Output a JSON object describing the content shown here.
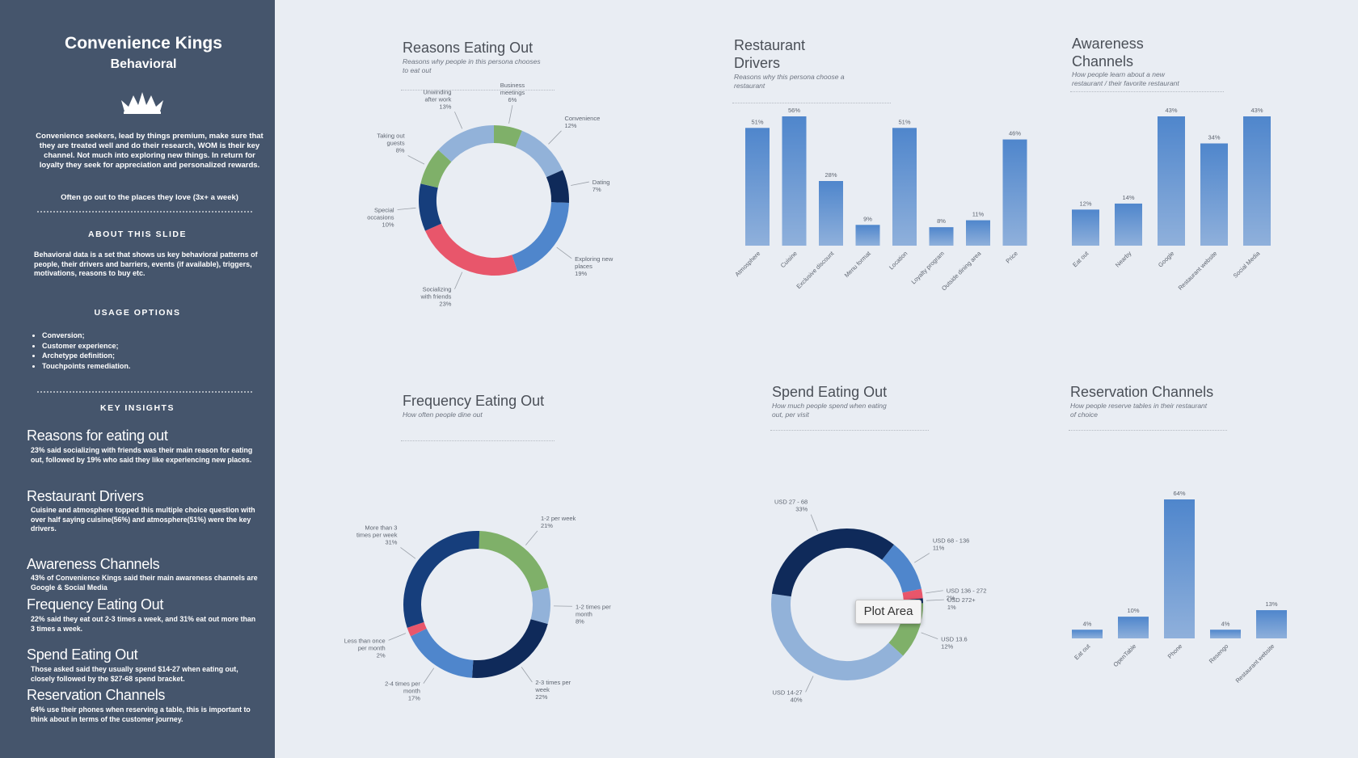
{
  "sidebar": {
    "title": "Convenience Kings",
    "subtitle": "Behavioral",
    "intro": "Convenience seekers, lead by things premium, make sure that they are treated well and do their research, WOM is their key channel. Not much into exploring new things. In return for loyalty they seek for appreciation and personalized rewards.",
    "intro_note": "Often go out to the places they love (3x+ a week)",
    "about_heading": "ABOUT THIS SLIDE",
    "about_text": "Behavioral data is a set that shows us key behavioral patterns of people, their drivers and barriers, events (if available), triggers, motivations, reasons to buy etc.",
    "usage_heading": "USAGE OPTIONS",
    "usage_items": [
      "Conversion;",
      "Customer experience;",
      "Archetype definition;",
      "Touchpoints remediation."
    ],
    "insights_heading": "KEY INSIGHTS",
    "insights": [
      {
        "title": "Reasons for eating out",
        "text": "23% said socializing with friends was their main reason for eating out, followed by 19% who said they like experiencing new places."
      },
      {
        "title": "Restaurant Drivers",
        "text": "Cuisine and atmosphere topped this multiple choice question with over half saying cuisine(56%) and atmosphere(51%) were the key drivers."
      },
      {
        "title": "Awareness Channels",
        "text": "43% of Convenience Kings said their main awareness channels are Google & Social Media"
      },
      {
        "title": "Frequency Eating Out",
        "text": "22% said they eat out 2-3 times a week, and 31% eat out more than 3 times a week."
      },
      {
        "title": "Spend Eating Out",
        "text": "Those asked said they usually spend $14-27 when eating out, closely followed by the $27-68 spend bracket."
      },
      {
        "title": "Reservation Channels",
        "text": "64% use their phones when reserving a table, this is important to think about in terms of the customer journey."
      }
    ]
  },
  "panels": {
    "reasons": {
      "title": "Reasons Eating Out",
      "subtitle": "Reasons why people in this persona chooses to eat out"
    },
    "drivers": {
      "title": "Restaurant Drivers",
      "subtitle": "Reasons why this persona choose a restaurant"
    },
    "awareness": {
      "title": "Awareness Channels",
      "subtitle": "How people learn about a new restaurant / their favorite restaurant"
    },
    "frequency": {
      "title": "Frequency Eating Out",
      "subtitle": "How often people dine out"
    },
    "spend": {
      "title": "Spend Eating Out",
      "subtitle": "How much people spend when eating out, per visit"
    },
    "reservation": {
      "title": "Reservation Channels",
      "subtitle": "How people reserve tables in their restaurant of choice"
    }
  },
  "tooltip": "Plot Area",
  "colors": {
    "sidebar": "#45556c",
    "background": "#e9edf3",
    "light_blue": "#92b2d9",
    "mid_blue": "#4f86cc",
    "dark_navy": "#0f2a5a",
    "green": "#7fb069",
    "red": "#e8566b"
  },
  "chart_data": [
    {
      "id": "reasons",
      "type": "pie",
      "title": "Reasons Eating Out",
      "slices": [
        {
          "label": "Business meetings",
          "value": 6,
          "color": "#7fb069"
        },
        {
          "label": "Convenience",
          "value": 12,
          "color": "#92b2d9"
        },
        {
          "label": "Dating",
          "value": 7,
          "color": "#0f2a5a"
        },
        {
          "label": "Exploring new places",
          "value": 19,
          "color": "#4f86cc"
        },
        {
          "label": "Socializing with friends",
          "value": 23,
          "color": "#e8566b"
        },
        {
          "label": "Special occasions",
          "value": 10,
          "color": "#163e7c"
        },
        {
          "label": "Taking out guests",
          "value": 8,
          "color": "#7fb069"
        },
        {
          "label": "Unwinding after work",
          "value": 13,
          "color": "#92b2d9"
        }
      ]
    },
    {
      "id": "drivers",
      "type": "bar",
      "title": "Restaurant Drivers",
      "categories": [
        "Atmosphere",
        "Cuisine",
        "Exclusive discount",
        "Menu format",
        "Location",
        "Loyalty program",
        "Outside dining area",
        "Price"
      ],
      "values": [
        51,
        56,
        28,
        9,
        51,
        8,
        11,
        46
      ]
    },
    {
      "id": "awareness",
      "type": "bar",
      "title": "Awareness Channels",
      "categories": [
        "Eat out",
        "Nearby",
        "Google",
        "Restaurant website",
        "Social Media"
      ],
      "values": [
        12,
        14,
        43,
        34,
        43
      ]
    },
    {
      "id": "frequency",
      "type": "pie",
      "title": "Frequency Eating Out",
      "slices": [
        {
          "label": "1-2 per week",
          "value": 21,
          "color": "#7fb069"
        },
        {
          "label": "1-2 times per month",
          "value": 8,
          "color": "#92b2d9"
        },
        {
          "label": "2-3 times per week",
          "value": 22,
          "color": "#0f2a5a"
        },
        {
          "label": "2-4 times per month",
          "value": 17,
          "color": "#4f86cc"
        },
        {
          "label": "Less than once per month",
          "value": 2,
          "color": "#e8566b"
        },
        {
          "label": "More than 3 times per week",
          "value": 31,
          "color": "#163e7c"
        }
      ]
    },
    {
      "id": "spend",
      "type": "pie",
      "title": "Spend Eating Out",
      "slices": [
        {
          "label": "USD 13.6",
          "value": 12,
          "color": "#7fb069"
        },
        {
          "label": "USD 14-27",
          "value": 40,
          "color": "#92b2d9"
        },
        {
          "label": "USD 27 - 68",
          "value": 33,
          "color": "#0f2a5a"
        },
        {
          "label": "USD 68 - 136",
          "value": 11,
          "color": "#4f86cc"
        },
        {
          "label": "USD 136 - 272",
          "value": 2,
          "color": "#e8566b"
        },
        {
          "label": "USD 272+",
          "value": 1,
          "color": "#0f2a5a"
        }
      ]
    },
    {
      "id": "reservation",
      "type": "bar",
      "title": "Reservation Channels",
      "categories": [
        "Eat out",
        "OpenTable",
        "Phone",
        "Resengo",
        "Restaurant website"
      ],
      "values": [
        4,
        10,
        64,
        4,
        13
      ]
    }
  ]
}
